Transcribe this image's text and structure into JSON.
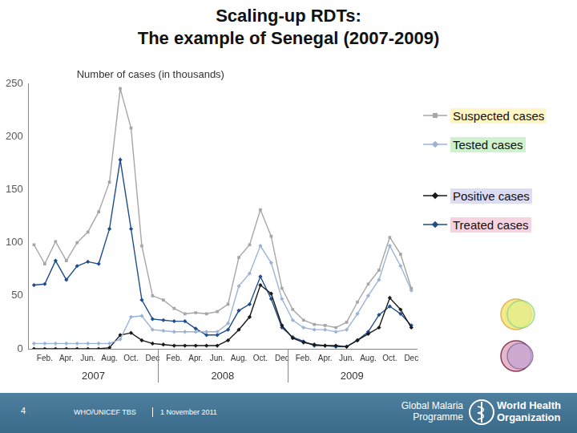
{
  "chart_data": {
    "type": "line",
    "title": "Scaling-up RDTs:\nThe example of Senegal (2007-2009)",
    "ylabel": "Number of cases (in thousands)",
    "categories": [
      null,
      "Feb.",
      null,
      "Apr.",
      null,
      "Jun.",
      null,
      "Aug.",
      null,
      "Oct.",
      null,
      "Dec",
      null,
      "Feb.",
      null,
      "Apr.",
      null,
      "Jun.",
      null,
      "Aug.",
      null,
      "Oct.",
      null,
      "Dec",
      null,
      "Feb.",
      null,
      "Apr.",
      null,
      "Jun.",
      null,
      "Aug.",
      null,
      "Oct.",
      null,
      "Dec"
    ],
    "x_group_labels": [
      "2007",
      "2008",
      "2009"
    ],
    "series": [
      {
        "name": "Suspected cases",
        "color": "#a6a6a6",
        "marker": "square",
        "values": [
          98,
          80,
          101,
          83,
          100,
          110,
          129,
          157,
          245,
          208,
          97,
          50,
          46,
          38,
          33,
          34,
          33,
          35,
          42,
          86,
          98,
          131,
          106,
          57,
          37,
          27,
          23,
          22,
          20,
          25,
          44,
          61,
          74,
          105,
          89,
          57
        ]
      },
      {
        "name": "Tested cases",
        "color": "#9bb4d6",
        "marker": "diamond",
        "values": [
          5,
          5,
          5,
          5,
          5,
          5,
          5,
          5,
          9,
          30,
          31,
          18,
          17,
          16,
          16,
          16,
          16,
          16,
          24,
          59,
          71,
          97,
          81,
          47,
          27,
          20,
          18,
          18,
          16,
          18,
          33,
          50,
          65,
          97,
          78,
          55
        ]
      },
      {
        "name": "Positive cases",
        "color": "#1a1a1a",
        "marker": "diamond",
        "values": [
          0,
          0,
          0,
          0,
          0,
          0,
          0,
          1,
          13,
          15,
          8,
          5,
          4,
          3,
          3,
          3,
          3,
          3,
          8,
          18,
          30,
          60,
          52,
          22,
          10,
          6,
          4,
          3,
          3,
          2,
          8,
          14,
          20,
          48,
          37,
          20
        ]
      },
      {
        "name": "Treated cases",
        "color": "#1f4e8c",
        "marker": "diamond",
        "values": [
          60,
          61,
          83,
          65,
          78,
          82,
          80,
          113,
          178,
          113,
          46,
          28,
          27,
          26,
          26,
          19,
          13,
          13,
          18,
          36,
          42,
          68,
          47,
          20,
          11,
          7,
          3,
          3,
          2,
          2,
          8,
          16,
          32,
          40,
          33,
          22
        ]
      }
    ],
    "ylim": [
      0,
      250
    ],
    "yticks": [
      0,
      50,
      100,
      150,
      200,
      250
    ],
    "grid": false,
    "legend": "right",
    "footer": {
      "page_number": "4",
      "event": "WHO/UNICEF TBS",
      "date": "1 November 2011",
      "programme": "Global Malaria Programme",
      "organization": "World Health Organization"
    }
  }
}
